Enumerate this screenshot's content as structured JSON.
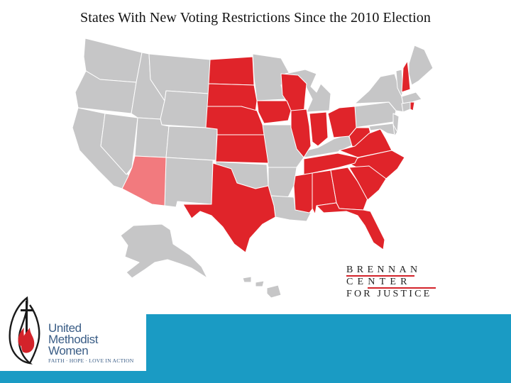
{
  "title": "States With New Voting Restrictions Since the 2010 Election",
  "colors": {
    "restricted": "#e0242a",
    "partial": "#f27a7e",
    "other": "#c6c6c7",
    "border": "#ffffff",
    "footer": "#1a9bc4",
    "brennan_rule": "#d3232a",
    "umw_text": "#3a5d86"
  },
  "map": {
    "restricted_states": [
      "ND",
      "SD",
      "NE",
      "KS",
      "TX",
      "WI",
      "IA",
      "IL",
      "IN",
      "OH",
      "WV",
      "VA",
      "NC",
      "TN",
      "MS",
      "AL",
      "GA",
      "SC",
      "FL",
      "NH",
      "RI"
    ],
    "partial_states": [
      "AZ"
    ]
  },
  "brennan": {
    "line1": "BRENNAN",
    "line2": "CENTER",
    "line3": "FOR JUSTICE"
  },
  "umw": {
    "line1": "United",
    "line2": "Methodist",
    "line3": "Women",
    "tagline": "FAITH · HOPE · LOVE IN ACTION"
  }
}
